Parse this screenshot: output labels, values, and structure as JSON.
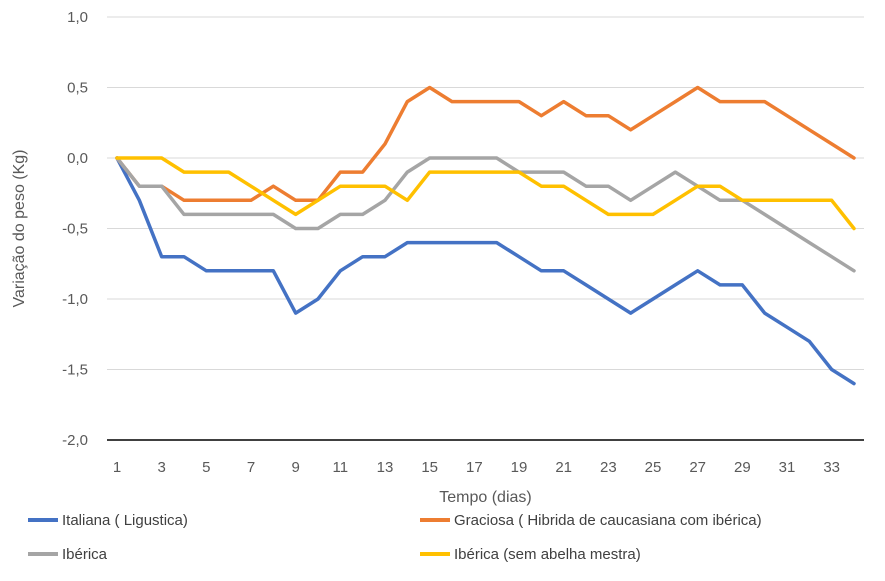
{
  "chart_data": {
    "type": "line",
    "title": "",
    "xlabel": "Tempo (dias)",
    "ylabel": "Variação do peso (Kg)",
    "ylim": [
      -2.0,
      1.0
    ],
    "yticks": [
      "1,0",
      "0,5",
      "0,0",
      "-0,5",
      "-1,0",
      "-1,5",
      "-2,0"
    ],
    "xticks": [
      "1",
      "3",
      "5",
      "7",
      "9",
      "11",
      "13",
      "15",
      "17",
      "19",
      "21",
      "23",
      "25",
      "27",
      "29",
      "31",
      "33"
    ],
    "x": [
      1,
      2,
      3,
      4,
      5,
      6,
      7,
      8,
      9,
      10,
      11,
      12,
      13,
      14,
      15,
      16,
      17,
      18,
      19,
      20,
      21,
      22,
      23,
      24,
      25,
      26,
      27,
      28,
      29,
      30,
      31,
      32,
      33,
      34
    ],
    "grid": true,
    "legend_position": "bottom",
    "series": [
      {
        "name": "Italiana ( Ligustica)",
        "color": "#4472c4",
        "values": [
          0,
          -0.3,
          -0.7,
          -0.7,
          -0.8,
          -0.8,
          -0.8,
          -0.8,
          -1.1,
          -1.0,
          -0.8,
          -0.7,
          -0.7,
          -0.6,
          -0.6,
          -0.6,
          -0.6,
          -0.6,
          -0.7,
          -0.8,
          -0.8,
          -0.9,
          -1.0,
          -1.1,
          -1.0,
          -0.9,
          -0.8,
          -0.9,
          -0.9,
          -1.1,
          -1.2,
          -1.3,
          -1.5,
          -1.6
        ]
      },
      {
        "name": "Graciosa ( Hibrida de caucasiana com ibérica)",
        "color": "#ed7d31",
        "values": [
          0,
          -0.2,
          -0.2,
          -0.3,
          -0.3,
          -0.3,
          -0.3,
          -0.2,
          -0.3,
          -0.3,
          -0.1,
          -0.1,
          0.1,
          0.4,
          0.5,
          0.4,
          0.4,
          0.4,
          0.4,
          0.3,
          0.4,
          0.3,
          0.3,
          0.2,
          0.3,
          0.4,
          0.5,
          0.4,
          0.4,
          0.4,
          0.3,
          0.2,
          0.1,
          0.0
        ]
      },
      {
        "name": "Ibérica",
        "color": "#a5a5a5",
        "values": [
          0,
          -0.2,
          -0.2,
          -0.4,
          -0.4,
          -0.4,
          -0.4,
          -0.4,
          -0.5,
          -0.5,
          -0.4,
          -0.4,
          -0.3,
          -0.1,
          0.0,
          0.0,
          0.0,
          0.0,
          -0.1,
          -0.1,
          -0.1,
          -0.2,
          -0.2,
          -0.3,
          -0.2,
          -0.1,
          -0.2,
          -0.3,
          -0.3,
          -0.4,
          -0.5,
          -0.6,
          -0.7,
          -0.8
        ]
      },
      {
        "name": "Ibérica (sem abelha mestra)",
        "color": "#ffc000",
        "values": [
          0,
          0,
          0,
          -0.1,
          -0.1,
          -0.1,
          -0.2,
          -0.3,
          -0.4,
          -0.3,
          -0.2,
          -0.2,
          -0.2,
          -0.3,
          -0.1,
          -0.1,
          -0.1,
          -0.1,
          -0.1,
          -0.2,
          -0.2,
          -0.3,
          -0.4,
          -0.4,
          -0.4,
          -0.3,
          -0.2,
          -0.2,
          -0.3,
          -0.3,
          -0.3,
          -0.3,
          -0.3,
          -0.5
        ]
      }
    ]
  }
}
